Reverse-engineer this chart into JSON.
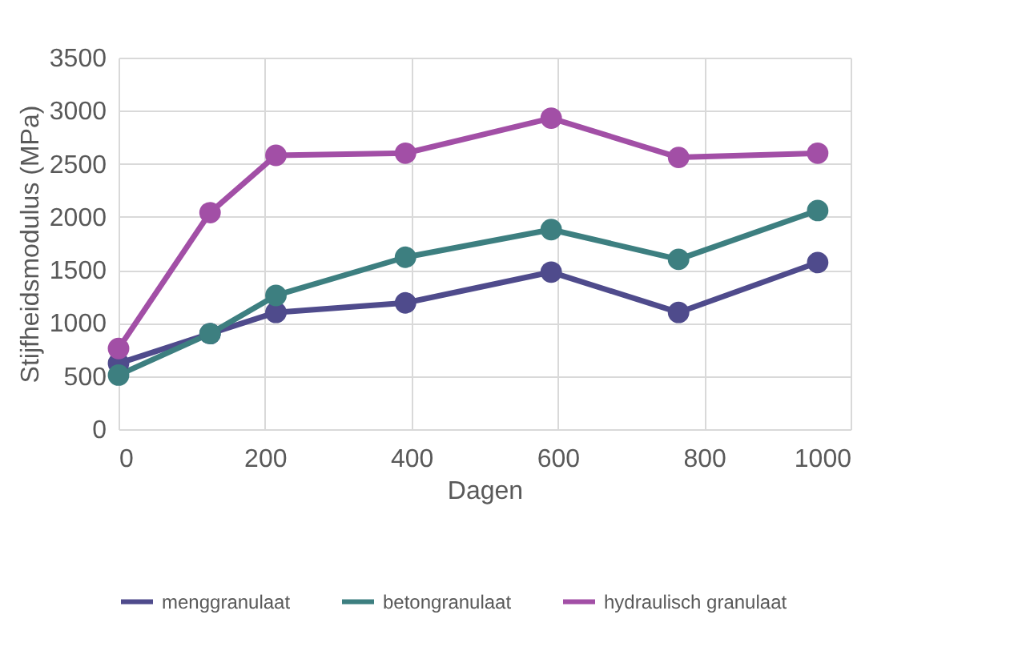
{
  "chart_data": {
    "type": "line",
    "xlabel": "Dagen",
    "ylabel": "Stijfheidsmodulus (MPa)",
    "x": [
      0,
      125,
      215,
      392,
      591,
      765,
      955
    ],
    "xlim": [
      0,
      1000
    ],
    "xticks": [
      0,
      200,
      400,
      600,
      800,
      1000
    ],
    "ylim": [
      0,
      3500
    ],
    "yticks": [
      0,
      500,
      1000,
      1500,
      2000,
      2500,
      3000,
      3500
    ],
    "grid": true,
    "legend": "bottom",
    "marker": "circle",
    "line_style": "solid",
    "series": [
      {
        "name": "menggranulaat",
        "color": "#4f4b8c",
        "values": [
          620,
          900,
          1100,
          1190,
          1480,
          1100,
          1570
        ]
      },
      {
        "name": "betongranulaat",
        "color": "#3d7f80",
        "values": [
          510,
          900,
          1260,
          1620,
          1880,
          1600,
          2060
        ]
      },
      {
        "name": "hydraulisch granulaat",
        "color": "#a24fa6",
        "values": [
          760,
          2040,
          2580,
          2600,
          2930,
          2560,
          2600
        ]
      }
    ]
  }
}
